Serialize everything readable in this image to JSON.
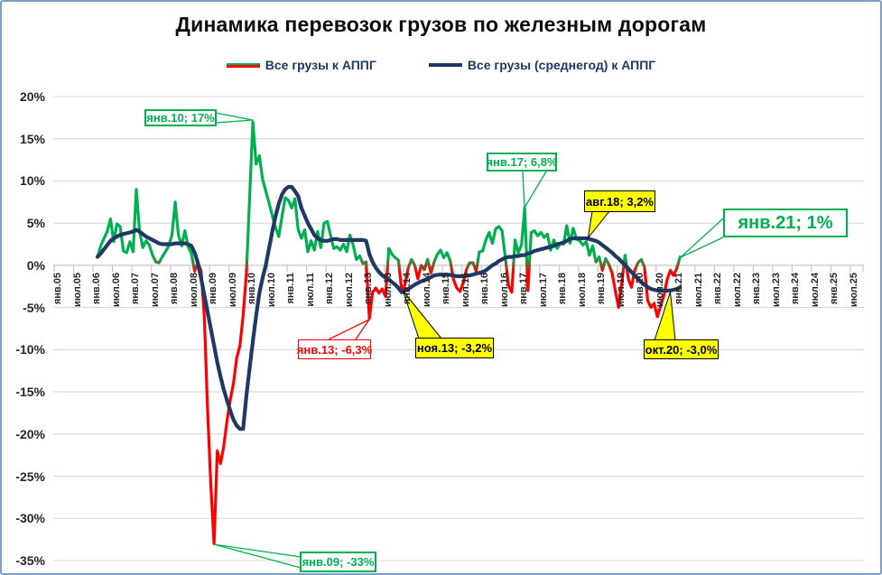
{
  "title": "Динамика перевозок грузов по железным дорогам",
  "legend": [
    {
      "label": "Все грузы к АППГ",
      "colors": [
        "#00B050",
        "#FF0000"
      ]
    },
    {
      "label": "Все грузы (среднегод) к АППГ",
      "colors": [
        "#1F3864"
      ]
    }
  ],
  "chart_data": {
    "type": "line",
    "title": "Динамика перевозок грузов по железным дорогам",
    "xlabel": "",
    "ylabel": "",
    "ylim": [
      -35,
      20
    ],
    "grid": "horizontal",
    "y_ticks": [
      {
        "v": 20,
        "label": "20%"
      },
      {
        "v": 15,
        "label": "15%"
      },
      {
        "v": 10,
        "label": "10%"
      },
      {
        "v": 5,
        "label": "5%"
      },
      {
        "v": 0,
        "label": "0%"
      },
      {
        "v": -5,
        "label": "-5%"
      },
      {
        "v": -10,
        "label": "-10%"
      },
      {
        "v": -15,
        "label": "-15%"
      },
      {
        "v": -20,
        "label": "-20%"
      },
      {
        "v": -25,
        "label": "-25%"
      },
      {
        "v": -30,
        "label": "-30%"
      },
      {
        "v": -35,
        "label": "-35%"
      }
    ],
    "x_tick_labels": [
      "янв.05",
      "июл.05",
      "янв.06",
      "июл.06",
      "янв.07",
      "июл.07",
      "янв.08",
      "июл.08",
      "янв.09",
      "июл.09",
      "янв.10",
      "июл.10",
      "янв.11",
      "июл.11",
      "янв.12",
      "июл.12",
      "янв.13",
      "июл.13",
      "янв.14",
      "июл.14",
      "янв.15",
      "июл.15",
      "янв.16",
      "июл.16",
      "янв.17",
      "июл.17",
      "янв.18",
      "июл.18",
      "янв.19",
      "июл.19",
      "янв.20",
      "июл.20",
      "янв.21",
      "июл.21",
      "янв.22",
      "июл.22",
      "янв.23",
      "июл.23",
      "янв.24",
      "июл.24",
      "янв.25",
      "июл.25"
    ],
    "series": [
      {
        "name": "Все грузы к АППГ",
        "style": "green-above-zero-red-below",
        "start_month": "янв.06",
        "values": [
          1.0,
          2.3,
          3.2,
          4.0,
          5.5,
          2.8,
          4.9,
          4.6,
          1.7,
          1.5,
          2.8,
          1.6,
          9.0,
          4.0,
          2.1,
          2.9,
          2.4,
          1.2,
          0.4,
          0.3,
          1.0,
          1.6,
          2.3,
          3.6,
          7.5,
          3.6,
          2.3,
          4.1,
          2.2,
          1.4,
          -0.7,
          0.3,
          -0.6,
          -6.0,
          -17.0,
          -26.0,
          -33.0,
          -22.0,
          -23.5,
          -21.5,
          -18.5,
          -16.0,
          -14.0,
          -11.0,
          -9.5,
          -6.0,
          -1.0,
          8.0,
          17.0,
          12.0,
          13.0,
          10.2,
          8.8,
          7.4,
          5.9,
          4.5,
          3.4,
          5.8,
          8.0,
          7.7,
          6.8,
          7.9,
          4.2,
          3.2,
          4.2,
          1.6,
          2.9,
          1.8,
          4.0,
          2.1,
          5.0,
          5.2,
          3.6,
          2.0,
          2.2,
          1.8,
          2.5,
          1.6,
          3.6,
          2.4,
          0.7,
          1.1,
          0.2,
          0.4,
          -6.3,
          -3.2,
          -2.7,
          -3.3,
          -2.8,
          -3.7,
          2.0,
          1.3,
          0.9,
          0.6,
          -3.0,
          -2.3,
          -0.3,
          0.7,
          0.0,
          -1.6,
          0.0,
          -0.5,
          0.7,
          -0.9,
          0.4,
          1.3,
          1.8,
          0.9,
          1.5,
          0.5,
          -1.7,
          -2.7,
          -3.1,
          -2.1,
          -0.5,
          0.3,
          0.3,
          -0.7,
          1.6,
          1.7,
          3.0,
          3.9,
          2.6,
          4.3,
          4.6,
          4.1,
          1.0,
          -2.4,
          -3.2,
          3.0,
          1.5,
          2.4,
          6.8,
          -3.0,
          3.9,
          4.1,
          3.5,
          3.9,
          3.3,
          3.7,
          1.8,
          3.0,
          2.0,
          2.6,
          2.5,
          4.7,
          2.6,
          4.4,
          3.1,
          2.9,
          2.4,
          2.8,
          1.2,
          2.3,
          0.4,
          1.0,
          -0.6,
          0.8,
          0.1,
          -0.9,
          -3.0,
          -5.0,
          -2.0,
          1.2,
          -1.6,
          -2.6,
          -0.6,
          0.3,
          0.7,
          -0.2,
          -4.2,
          -5.0,
          -4.5,
          -6.1,
          -4.8,
          -3.6,
          -1.7,
          -0.6,
          -1.2,
          -0.4,
          1.0
        ]
      },
      {
        "name": "Все грузы (среднегод) к АППГ",
        "color": "#1F3864",
        "start_month": "янв.06",
        "values": [
          1.0,
          1.4,
          1.9,
          2.4,
          2.9,
          3.2,
          3.4,
          3.6,
          3.7,
          3.8,
          3.9,
          4.0,
          4.2,
          4.0,
          3.7,
          3.4,
          3.2,
          3.0,
          2.8,
          2.6,
          2.5,
          2.5,
          2.5,
          2.5,
          2.6,
          2.6,
          2.6,
          2.6,
          2.5,
          2.3,
          1.5,
          0.3,
          -1.5,
          -3.5,
          -5.5,
          -7.5,
          -9.5,
          -11.5,
          -13.2,
          -14.7,
          -16.0,
          -17.2,
          -18.3,
          -19.0,
          -19.4,
          -19.4,
          -15.5,
          -12.2,
          -9.0,
          -6.0,
          -3.3,
          -1.5,
          0.0,
          2.0,
          4.0,
          5.8,
          7.3,
          8.4,
          9.0,
          9.3,
          9.3,
          8.8,
          8.2,
          6.8,
          5.9,
          5.0,
          4.3,
          3.6,
          3.2,
          3.0,
          2.9,
          2.9,
          3.0,
          3.1,
          3.1,
          3.0,
          3.0,
          3.0,
          3.0,
          3.0,
          3.0,
          3.0,
          3.0,
          2.9,
          1.3,
          0.4,
          -0.3,
          -0.8,
          -1.2,
          -1.5,
          -1.7,
          -2.0,
          -2.3,
          -2.7,
          -3.2,
          -3.0,
          -2.8,
          -2.55,
          -2.3,
          -2.1,
          -1.9,
          -1.75,
          -1.6,
          -1.4,
          -1.2,
          -1.15,
          -1.1,
          -1.1,
          -1.1,
          -1.15,
          -1.2,
          -1.3,
          -1.3,
          -1.3,
          -1.25,
          -1.2,
          -1.1,
          -1.0,
          -0.9,
          -0.8,
          -0.6,
          -0.3,
          0.0,
          0.2,
          0.5,
          0.7,
          0.9,
          1.0,
          1.0,
          1.1,
          1.1,
          1.2,
          1.2,
          1.4,
          1.5,
          1.7,
          1.8,
          1.9,
          2.0,
          2.1,
          2.2,
          2.3,
          2.5,
          2.6,
          2.7,
          2.9,
          3.1,
          3.2,
          3.2,
          3.2,
          3.2,
          3.2,
          3.1,
          3.0,
          2.9,
          2.7,
          2.4,
          2.1,
          1.8,
          1.5,
          1.1,
          0.8,
          0.4,
          0.0,
          -0.4,
          -0.8,
          -1.2,
          -1.6,
          -2.0,
          -2.3,
          -2.6,
          -2.8,
          -2.9,
          -3.0,
          -3.0,
          -3.0,
          -3.0,
          -3.0,
          -2.9,
          -2.8,
          -2.6
        ]
      }
    ],
    "annotations": [
      {
        "text": "янв.10; 17%",
        "style": "green-box",
        "anchor_month": "янв.10",
        "value": 17,
        "series": "Все грузы к АППГ"
      },
      {
        "text": "янв.09; -33%",
        "style": "green-box",
        "anchor_month": "янв.09",
        "value": -33,
        "series": "Все грузы к АППГ"
      },
      {
        "text": "янв.17; 6,8%",
        "style": "green-box",
        "anchor_month": "янв.17",
        "value": 6.8,
        "series": "Все грузы к АППГ"
      },
      {
        "text": "янв.21; 1%",
        "style": "green-box-large",
        "anchor_month": "янв.21",
        "value": 1,
        "series": "Все грузы к АППГ"
      },
      {
        "text": "янв.13; -6,3%",
        "style": "red-box",
        "anchor_month": "янв.13",
        "value": -6.3,
        "series": "Все грузы к АППГ"
      },
      {
        "text": "ноя.13; -3,2%",
        "style": "yellow-box",
        "anchor_month": "ноя.13",
        "value": -3.2,
        "series": "Все грузы (среднегод) к АППГ"
      },
      {
        "text": "авг.18; 3,2%",
        "style": "yellow-box",
        "anchor_month": "авг.18",
        "value": 3.2,
        "series": "Все грузы (среднегод) к АППГ"
      },
      {
        "text": "окт.20; -3,0%",
        "style": "yellow-box",
        "anchor_month": "окт.20",
        "value": -3.0,
        "series": "Все грузы (среднегод) к АППГ"
      }
    ],
    "colors": {
      "positive": "#00B050",
      "negative": "#FF0000",
      "average": "#1F3864",
      "grid": "#D9D9D9",
      "axis": "#BFBFBF",
      "callout_yellow": "#FFFF00",
      "frame": "#7E9DC1"
    }
  }
}
